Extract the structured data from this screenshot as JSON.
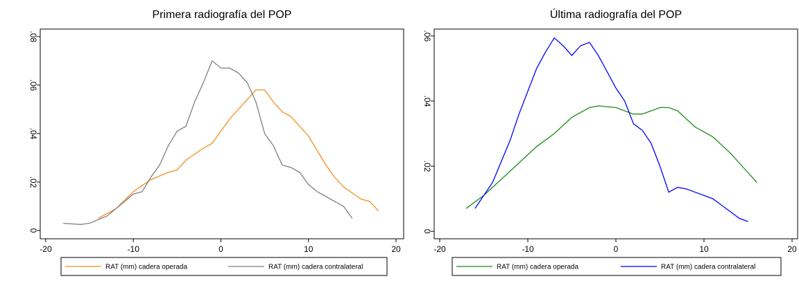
{
  "chart_data": [
    {
      "type": "line",
      "title": "Primera radiografía del POP",
      "xlim": [
        -20.63,
        20.87
      ],
      "ylim": [
        -0.0034,
        0.0831
      ],
      "xticks": [
        -20,
        -10,
        0,
        10,
        20
      ],
      "yticks": [
        0,
        {
          "value": 0.02,
          "label": ".02"
        },
        {
          "value": 0.04,
          "label": ".04"
        },
        {
          "value": 0.06,
          "label": ".06"
        },
        {
          "value": 0.08,
          "label": ".08"
        }
      ],
      "series": [
        {
          "name": "RAT (mm) cadera operada",
          "color": "#f28e1c",
          "x": [
            -14,
            -12,
            -10,
            -8,
            -6,
            -5,
            -4,
            -2,
            -1,
            0,
            1,
            2,
            3,
            4,
            5,
            6,
            7,
            8,
            10,
            12,
            13,
            14,
            16,
            17,
            18
          ],
          "values": [
            0.005,
            0.009,
            0.016,
            0.021,
            0.024,
            0.025,
            0.029,
            0.034,
            0.036,
            0.041,
            0.046,
            0.05,
            0.054,
            0.058,
            0.058,
            0.053,
            0.049,
            0.047,
            0.039,
            0.027,
            0.022,
            0.018,
            0.013,
            0.012,
            0.008
          ]
        },
        {
          "name": "RAT (mm) cadera contralateral",
          "color": "#7f7f7f",
          "x": [
            -18,
            -16,
            -15,
            -13,
            -11,
            -10,
            -9,
            -8,
            -7,
            -6,
            -5,
            -4,
            -3,
            -2,
            -1,
            0,
            1,
            2,
            3,
            4,
            5,
            6,
            7,
            8,
            9,
            10,
            11,
            12,
            13,
            14,
            15
          ],
          "values": [
            0.003,
            0.0025,
            0.003,
            0.006,
            0.012,
            0.015,
            0.016,
            0.022,
            0.027,
            0.035,
            0.041,
            0.043,
            0.053,
            0.061,
            0.07,
            0.067,
            0.067,
            0.065,
            0.061,
            0.053,
            0.04,
            0.035,
            0.027,
            0.026,
            0.024,
            0.019,
            0.016,
            0.014,
            0.012,
            0.01,
            0.005
          ]
        }
      ]
    },
    {
      "type": "line",
      "title": "Última radiografía del POP",
      "xlim": [
        -20.63,
        20.63
      ],
      "ylim": [
        -0.0023,
        0.0621
      ],
      "xticks": [
        -20,
        -10,
        0,
        10,
        20
      ],
      "yticks": [
        0,
        {
          "value": 0.02,
          "label": ".02"
        },
        {
          "value": 0.04,
          "label": ".04"
        },
        {
          "value": 0.06,
          "label": ".06"
        }
      ],
      "series": [
        {
          "name": "RAT (mm) cadera operada",
          "color": "#1a8a1a",
          "x": [
            -17,
            -15,
            -13,
            -11,
            -9,
            -7,
            -5,
            -3,
            -2,
            0,
            2,
            3,
            4,
            5,
            6,
            7,
            9,
            11,
            13,
            15,
            16
          ],
          "values": [
            0.007,
            0.011,
            0.016,
            0.021,
            0.026,
            0.03,
            0.035,
            0.038,
            0.0385,
            0.038,
            0.036,
            0.036,
            0.037,
            0.038,
            0.038,
            0.037,
            0.032,
            0.029,
            0.024,
            0.018,
            0.015
          ]
        },
        {
          "name": "RAT (mm) cadera contralateral",
          "color": "#0000ff",
          "x": [
            -16,
            -14,
            -12,
            -11,
            -10,
            -9,
            -8,
            -7,
            -6,
            -5,
            -4,
            -3,
            -2,
            -1,
            0,
            1,
            2,
            3,
            4,
            5,
            6,
            7,
            8,
            9,
            10,
            11,
            12,
            13,
            14,
            15
          ],
          "values": [
            0.007,
            0.015,
            0.028,
            0.036,
            0.043,
            0.05,
            0.055,
            0.0594,
            0.057,
            0.054,
            0.057,
            0.058,
            0.054,
            0.049,
            0.044,
            0.04,
            0.033,
            0.031,
            0.027,
            0.02,
            0.012,
            0.0135,
            0.013,
            0.012,
            0.011,
            0.01,
            0.008,
            0.006,
            0.004,
            0.003
          ]
        }
      ]
    }
  ]
}
